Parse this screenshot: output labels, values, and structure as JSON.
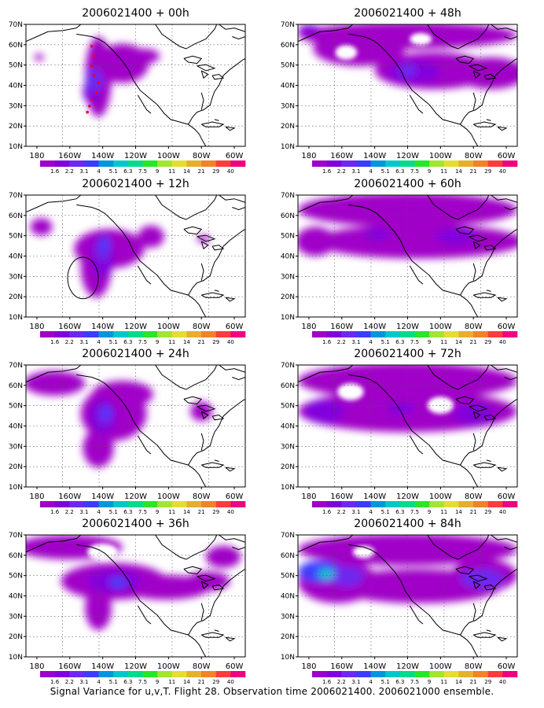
{
  "caption": "Signal Variance for u,v,T. Flight 28. Observation time 2006021400. 2006021000 ensemble.",
  "panels": [
    {
      "title": "2006021400 + 00h",
      "flight_track": true,
      "circle": false
    },
    {
      "title": "2006021400 + 48h",
      "flight_track": false,
      "circle": false
    },
    {
      "title": "2006021400 + 12h",
      "flight_track": false,
      "circle": true
    },
    {
      "title": "2006021400 + 60h",
      "flight_track": false,
      "circle": false
    },
    {
      "title": "2006021400 + 24h",
      "flight_track": false,
      "circle": false
    },
    {
      "title": "2006021400 + 72h",
      "flight_track": false,
      "circle": false
    },
    {
      "title": "2006021400 + 36h",
      "flight_track": false,
      "circle": false
    },
    {
      "title": "2006021400 + 84h",
      "flight_track": false,
      "circle": false
    }
  ],
  "lat_labels": [
    "70N",
    "60N",
    "50N",
    "40N",
    "30N",
    "20N",
    "10N"
  ],
  "lon_labels": [
    "180",
    "160W",
    "140W",
    "120W",
    "100W",
    "80W",
    "60W"
  ],
  "colorbar": {
    "labels": [
      "1.6",
      "2.2",
      "3.1",
      "4",
      "5.1",
      "6.3",
      "7.5",
      "9",
      "11",
      "14",
      "21",
      "29",
      "40"
    ],
    "colors": [
      "#a000c8",
      "#8200dc",
      "#6e28f0",
      "#3c3cff",
      "#0096dc",
      "#00c8c8",
      "#00dc8c",
      "#28e628",
      "#a0e632",
      "#e6dc32",
      "#e6af2d",
      "#f08228",
      "#fa3c3c",
      "#f00082"
    ]
  },
  "colors": {
    "map_border": "#000000",
    "grid": "#555555",
    "coastline": "#000000",
    "track": "#e8003a"
  }
}
